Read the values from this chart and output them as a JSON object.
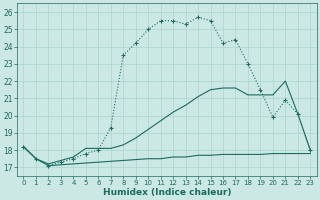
{
  "xlabel": "Humidex (Indice chaleur)",
  "xlim": [
    -0.5,
    23.5
  ],
  "ylim": [
    16.5,
    26.5
  ],
  "yticks": [
    17,
    18,
    19,
    20,
    21,
    22,
    23,
    24,
    25,
    26
  ],
  "xticks": [
    0,
    1,
    2,
    3,
    4,
    5,
    6,
    7,
    8,
    9,
    10,
    11,
    12,
    13,
    14,
    15,
    16,
    17,
    18,
    19,
    20,
    21,
    22,
    23
  ],
  "bg_color": "#cce8e4",
  "grid_color": "#b0d8d2",
  "line_color": "#1a6b60",
  "line1_y": [
    18.2,
    17.5,
    17.1,
    17.3,
    17.5,
    17.8,
    18.0,
    19.3,
    23.5,
    24.2,
    25.0,
    25.5,
    25.5,
    25.3,
    25.7,
    25.5,
    24.2,
    24.4,
    23.0,
    21.5,
    19.9,
    20.9,
    20.1,
    18.0
  ],
  "line2_y": [
    18.2,
    17.5,
    17.2,
    17.4,
    17.6,
    18.1,
    18.1,
    18.1,
    18.3,
    18.7,
    19.2,
    19.7,
    20.2,
    20.6,
    21.1,
    21.5,
    21.6,
    21.6,
    21.2,
    21.2,
    21.2,
    22.0,
    20.1,
    18.0
  ],
  "line3_y": [
    18.2,
    17.5,
    17.1,
    17.15,
    17.2,
    17.25,
    17.3,
    17.35,
    17.4,
    17.45,
    17.5,
    17.5,
    17.6,
    17.6,
    17.7,
    17.7,
    17.75,
    17.75,
    17.75,
    17.75,
    17.8,
    17.8,
    17.8,
    17.8
  ]
}
